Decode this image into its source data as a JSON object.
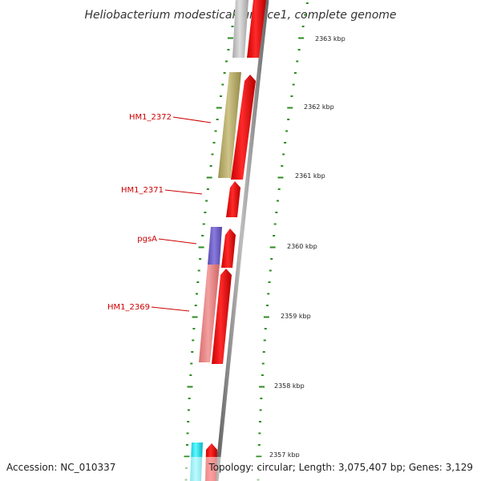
{
  "title": "Heliobacterium modesticaldum Ice1, complete genome",
  "footer": {
    "accession": "Accession: NC_010337",
    "topology": "Topology: circular; Length: 3,075,407 bp; Genes: 3,129"
  },
  "scale_labels": [
    "2363 kbp",
    "2362 kbp",
    "2361 kbp",
    "2360 kbp",
    "2359 kbp",
    "2358 kbp",
    "2357 kbp"
  ],
  "gene_labels": [
    "HM1_2372",
    "HM1_2371",
    "pgsA",
    "HM1_2369"
  ],
  "colors": {
    "gene_red": "#ff0000",
    "tick_green": "#2e8b22",
    "label_red": "#cc0000",
    "backbone_gray": "#8a8a8a",
    "khaki": "#b8ad6a",
    "violet": "#7766cc",
    "salmon": "#ee8888",
    "light_gray": "#c8c8c8",
    "cyan": "#00e5ee"
  }
}
